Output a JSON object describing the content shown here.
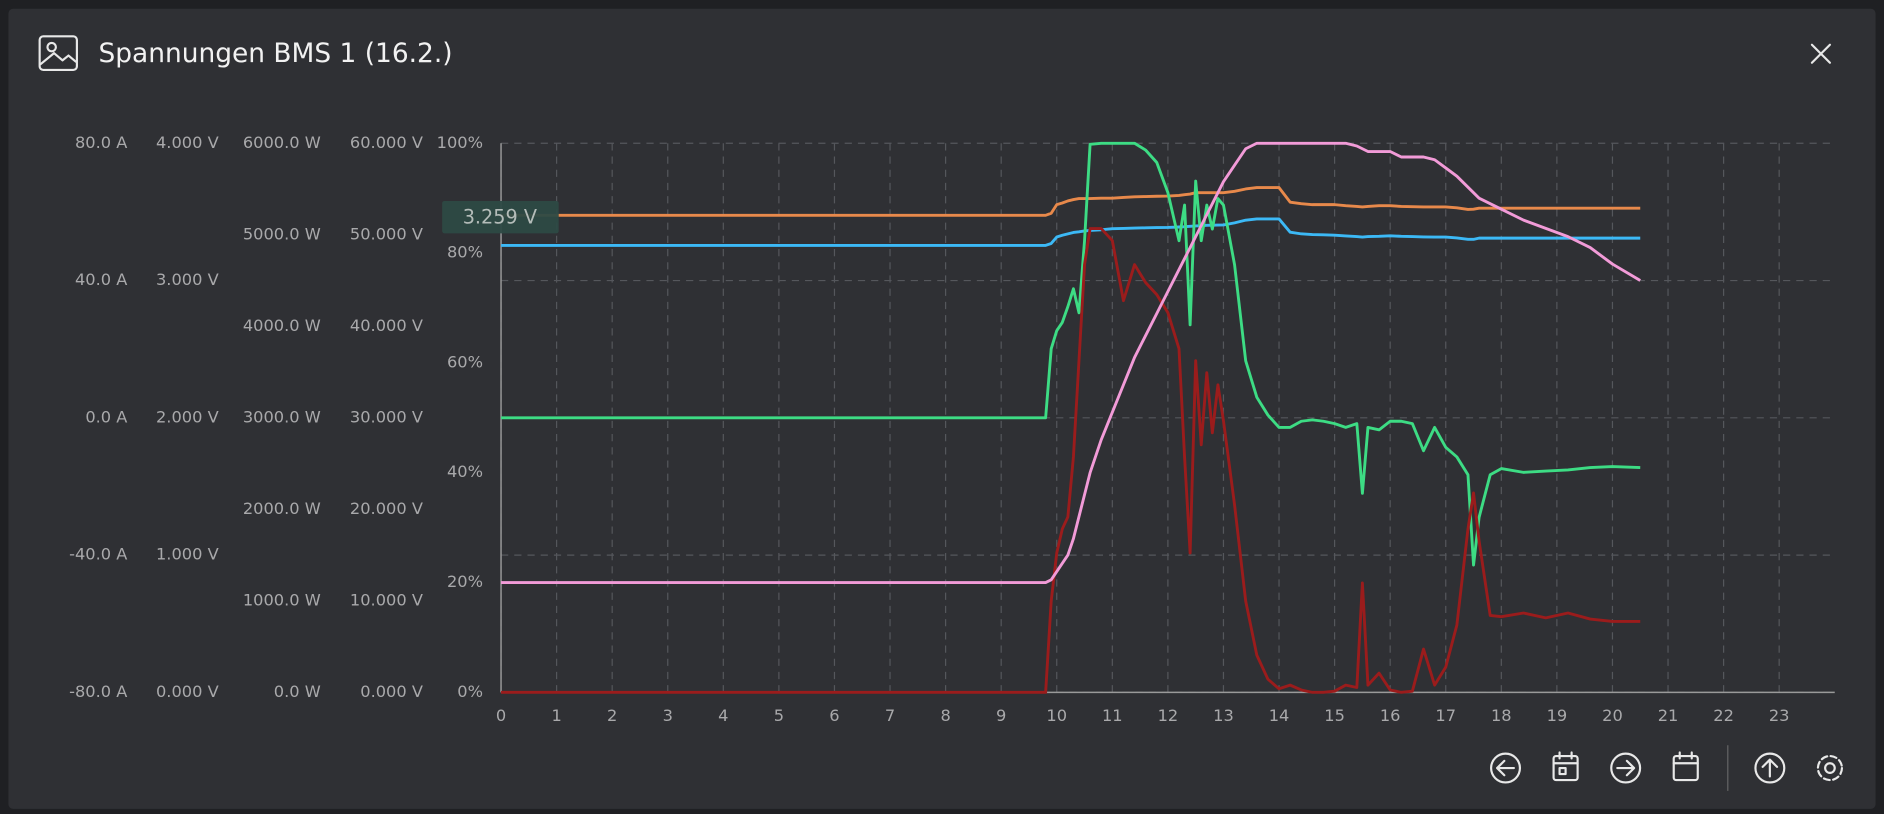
{
  "header": {
    "title": "Spannungen BMS 1 (16.2.)"
  },
  "chart_data": {
    "type": "line",
    "annotation": "3.259 V",
    "x": [
      0,
      9.8,
      9.9,
      10.0,
      10.1,
      10.2,
      10.3,
      10.4,
      10.5,
      10.6,
      10.8,
      11.0,
      11.2,
      11.4,
      11.6,
      11.8,
      12.0,
      12.2,
      12.3,
      12.4,
      12.5,
      12.6,
      12.7,
      12.8,
      12.9,
      13.0,
      13.2,
      13.4,
      13.6,
      13.8,
      14.0,
      14.2,
      14.4,
      14.6,
      14.8,
      15.0,
      15.2,
      15.4,
      15.5,
      15.6,
      15.8,
      16.0,
      16.2,
      16.4,
      16.6,
      16.8,
      17.0,
      17.2,
      17.4,
      17.5,
      17.6,
      17.8,
      18.0,
      18.4,
      18.8,
      19.2,
      19.6,
      20.0,
      20.5
    ],
    "xlim": [
      0,
      24
    ],
    "xticks": [
      0,
      1,
      2,
      3,
      4,
      5,
      6,
      7,
      8,
      9,
      10,
      11,
      12,
      13,
      14,
      15,
      16,
      17,
      18,
      19,
      20,
      21,
      22,
      23
    ],
    "grid": true,
    "ylim": [
      0,
      100
    ],
    "yticks": [
      {
        "value": 0,
        "label": "0%"
      },
      {
        "value": 20,
        "label": "20%"
      },
      {
        "value": 40,
        "label": "40%"
      },
      {
        "value": 60,
        "label": "60%"
      },
      {
        "value": 80,
        "label": "80%"
      },
      {
        "value": 100,
        "label": "100%"
      }
    ],
    "y2lim": [
      0,
      60
    ],
    "y2ticks": [
      {
        "value": 0,
        "label": "0.000 V"
      },
      {
        "value": 10,
        "label": "10.000 V"
      },
      {
        "value": 20,
        "label": "20.000 V"
      },
      {
        "value": 30,
        "label": "30.000 V"
      },
      {
        "value": 40,
        "label": "40.000 V"
      },
      {
        "value": 50,
        "label": "50.000 V"
      },
      {
        "value": 60,
        "label": "60.000 V"
      }
    ],
    "y3lim": [
      0,
      6000
    ],
    "y3ticks": [
      {
        "value": 0,
        "label": "0.0 W"
      },
      {
        "value": 1000,
        "label": "1000.0 W"
      },
      {
        "value": 2000,
        "label": "2000.0 W"
      },
      {
        "value": 3000,
        "label": "3000.0 W"
      },
      {
        "value": 4000,
        "label": "4000.0 W"
      },
      {
        "value": 5000,
        "label": "5000.0 W"
      },
      {
        "value": 6000,
        "label": "6000.0 W"
      }
    ],
    "y4lim": [
      0,
      4
    ],
    "y4ticks": [
      {
        "value": 0,
        "label": "0.000 V"
      },
      {
        "value": 1,
        "label": "1.000 V"
      },
      {
        "value": 2,
        "label": "2.000 V"
      },
      {
        "value": 3,
        "label": "3.000 V"
      },
      {
        "value": 4,
        "label": "4.000 V"
      }
    ],
    "y5lim": [
      -80,
      80
    ],
    "y5ticks": [
      {
        "value": -80,
        "label": "-80.0 A"
      },
      {
        "value": -40,
        "label": "-40.0 A"
      },
      {
        "value": 0,
        "label": "0.0 A"
      },
      {
        "value": 40,
        "label": "40.0 A"
      },
      {
        "value": 80,
        "label": "80.0 A"
      }
    ],
    "series": [
      {
        "color": "#e8894b",
        "axis": "y4",
        "values": [
          3.475,
          3.475,
          3.49,
          3.553,
          3.565,
          3.58,
          3.59,
          3.597,
          3.597,
          3.597,
          3.6,
          3.6,
          3.605,
          3.61,
          3.612,
          3.614,
          3.615,
          3.62,
          3.625,
          3.63,
          3.64,
          3.64,
          3.64,
          3.64,
          3.64,
          3.64,
          3.65,
          3.667,
          3.677,
          3.677,
          3.677,
          3.571,
          3.56,
          3.553,
          3.553,
          3.553,
          3.545,
          3.54,
          3.536,
          3.54,
          3.545,
          3.545,
          3.54,
          3.538,
          3.536,
          3.536,
          3.536,
          3.53,
          3.518,
          3.52,
          3.527,
          3.527,
          3.527,
          3.527,
          3.527,
          3.527,
          3.527,
          3.527,
          3.527
        ]
      },
      {
        "color": "#3cb9f6",
        "axis": "y4",
        "values": [
          3.256,
          3.256,
          3.27,
          3.317,
          3.33,
          3.34,
          3.35,
          3.355,
          3.361,
          3.365,
          3.37,
          3.378,
          3.38,
          3.382,
          3.384,
          3.386,
          3.387,
          3.39,
          3.392,
          3.395,
          3.398,
          3.4,
          3.402,
          3.403,
          3.404,
          3.405,
          3.42,
          3.44,
          3.449,
          3.449,
          3.449,
          3.352,
          3.34,
          3.335,
          3.333,
          3.33,
          3.325,
          3.32,
          3.317,
          3.32,
          3.322,
          3.326,
          3.322,
          3.32,
          3.318,
          3.317,
          3.317,
          3.31,
          3.3,
          3.3,
          3.309,
          3.309,
          3.309,
          3.309,
          3.309,
          3.309,
          3.309,
          3.309,
          3.309
        ]
      },
      {
        "color": "#3ddc84",
        "axis": "y5",
        "values": [
          0,
          0,
          20.1,
          25.4,
          27.8,
          32.4,
          37.6,
          30.6,
          51.6,
          79.7,
          80,
          80,
          80,
          80,
          78,
          74.4,
          65.6,
          51.6,
          62,
          27.1,
          69,
          51.6,
          62,
          55,
          63.9,
          62,
          44.6,
          16.6,
          6,
          0.8,
          -2.8,
          -2.8,
          -1,
          -0.6,
          -1,
          -1.7,
          -2.8,
          -1.7,
          -22,
          -2.8,
          -3.5,
          -1,
          -1,
          -1.7,
          -9.6,
          -2.8,
          -8.6,
          -11.4,
          -16.6,
          -42.9,
          -29,
          -16.6,
          -14.8,
          -15.9,
          -15.5,
          -15.2,
          -14.5,
          -14.2,
          -14.5
        ]
      },
      {
        "color": "#9b1c1c",
        "axis": "y3",
        "values": [
          0,
          0,
          998,
          1523,
          1786,
          1917,
          2573,
          3624,
          4674,
          5068,
          5068,
          4937,
          4280,
          4674,
          4477,
          4346,
          4149,
          3755,
          2573,
          1523,
          3624,
          2705,
          3493,
          2836,
          3361,
          2967,
          2048,
          998,
          407,
          144,
          39,
          79,
          26,
          0,
          0,
          13,
          79,
          53,
          1195,
          79,
          210,
          26,
          0,
          13,
          473,
          79,
          276,
          735,
          1786,
          2179,
          1654,
          840,
          827,
          867,
          814,
          867,
          801,
          775,
          775
        ]
      },
      {
        "color": "#f29bd8",
        "axis": "y",
        "values": [
          20,
          20,
          20.5,
          22,
          23.5,
          25,
          28,
          32,
          36,
          40,
          46,
          51,
          56,
          61,
          65,
          69,
          73,
          77,
          79,
          81,
          83,
          85,
          87,
          89,
          91,
          93,
          96,
          99,
          100,
          100,
          100,
          100,
          100,
          100,
          100,
          100,
          100,
          99.5,
          99,
          98.5,
          98.5,
          98.5,
          97.5,
          97.5,
          97.5,
          97,
          95.5,
          94,
          92,
          91,
          90,
          89,
          88,
          86,
          84.5,
          83,
          81,
          78,
          75
        ]
      }
    ]
  }
}
